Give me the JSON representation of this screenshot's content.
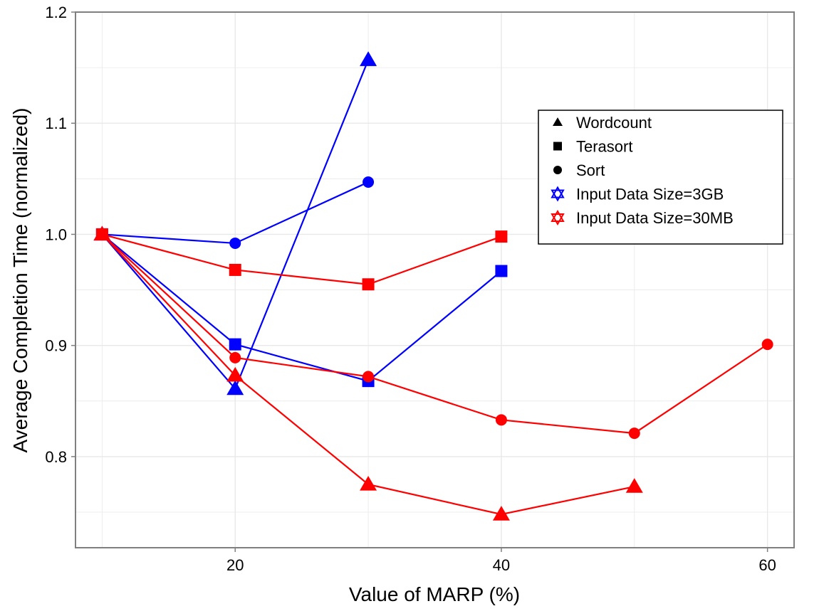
{
  "colors": {
    "background": "#ffffff",
    "grid": "#e8e8e8",
    "frame": "#7f7f7f",
    "size_3gb": "#0000ff",
    "size_30mb": "#ff0000"
  },
  "chart_data": {
    "type": "line",
    "title": "",
    "xlabel": "Value of MARP (%)",
    "ylabel": "Average Completion Time (normalized)",
    "xlim": [
      8,
      62
    ],
    "ylim": [
      0.718,
      1.2
    ],
    "x_ticks": [
      20,
      40,
      60
    ],
    "y_ticks": [
      0.8,
      0.9,
      1.0,
      1.1,
      1.2
    ],
    "x_tick_labels": [
      "20",
      "40",
      "60"
    ],
    "y_tick_labels": [
      "0.8",
      "0.9",
      "1.0",
      "1.1",
      "1.2"
    ],
    "grid": true,
    "legend": {
      "position": "top-right",
      "entries": [
        {
          "label": "Wordcount",
          "symbol": "triangle-icon"
        },
        {
          "label": "Terasort",
          "symbol": "square-icon"
        },
        {
          "label": "Sort",
          "symbol": "circle-icon"
        },
        {
          "label": "Input Data Size=3GB",
          "symbol": "star-of-david-icon",
          "color": "#0000ff"
        },
        {
          "label": "Input Data Size=30MB",
          "symbol": "star-of-david-icon",
          "color": "#ff0000"
        }
      ]
    },
    "series": [
      {
        "benchmark": "Wordcount",
        "input_size": "3GB",
        "color": "#0000ff",
        "marker": "triangle",
        "x": [
          10,
          20,
          30
        ],
        "y": [
          1.0,
          0.861,
          1.157
        ]
      },
      {
        "benchmark": "Terasort",
        "input_size": "3GB",
        "color": "#0000ff",
        "marker": "square",
        "x": [
          10,
          20,
          30,
          40
        ],
        "y": [
          1.0,
          0.901,
          0.868,
          0.967
        ]
      },
      {
        "benchmark": "Sort",
        "input_size": "3GB",
        "color": "#0000ff",
        "marker": "circle",
        "x": [
          10,
          20,
          30
        ],
        "y": [
          1.0,
          0.992,
          1.047
        ]
      },
      {
        "benchmark": "Wordcount",
        "input_size": "30MB",
        "color": "#ff0000",
        "marker": "triangle",
        "x": [
          10,
          20,
          30,
          40,
          50
        ],
        "y": [
          1.0,
          0.873,
          0.775,
          0.748,
          0.773
        ]
      },
      {
        "benchmark": "Terasort",
        "input_size": "30MB",
        "color": "#ff0000",
        "marker": "square",
        "x": [
          10,
          20,
          30,
          40
        ],
        "y": [
          1.0,
          0.968,
          0.955,
          0.998
        ]
      },
      {
        "benchmark": "Sort",
        "input_size": "30MB",
        "color": "#ff0000",
        "marker": "circle",
        "x": [
          10,
          20,
          30,
          40,
          50,
          60
        ],
        "y": [
          1.0,
          0.889,
          0.872,
          0.833,
          0.821,
          0.901
        ]
      }
    ]
  }
}
